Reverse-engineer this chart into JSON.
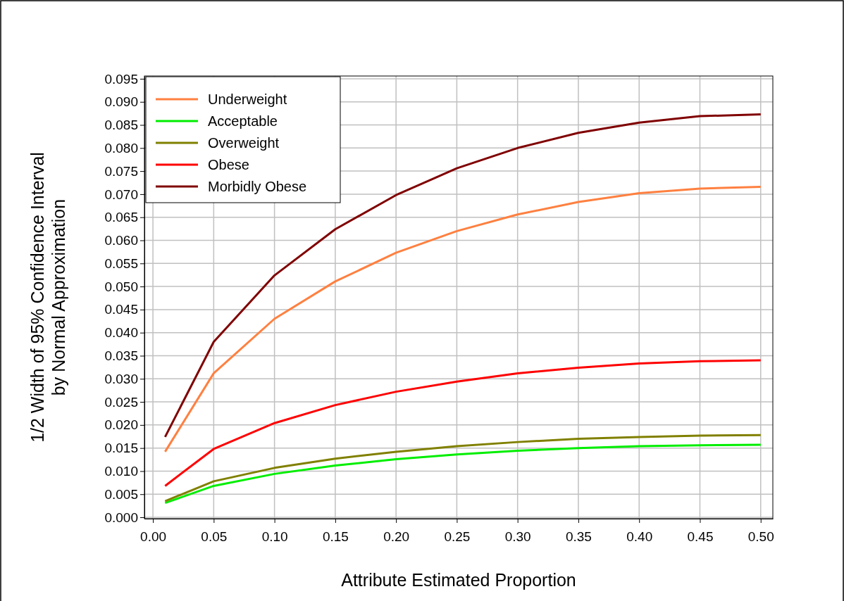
{
  "chart_data": {
    "type": "line",
    "xlabel": "Attribute Estimated Proportion",
    "ylabel": "1/2 Width of 95% Confidence Interval\nby Normal Approximation",
    "x": [
      0.01,
      0.05,
      0.1,
      0.15,
      0.2,
      0.25,
      0.3,
      0.35,
      0.4,
      0.45,
      0.5
    ],
    "series": [
      {
        "name": "Underweight",
        "color": "#ff8040",
        "values": [
          0.0142,
          0.0312,
          0.043,
          0.0511,
          0.0573,
          0.062,
          0.0656,
          0.0683,
          0.0702,
          0.0712,
          0.0716
        ]
      },
      {
        "name": "Acceptable",
        "color": "#00ee00",
        "values": [
          0.0031,
          0.0068,
          0.0094,
          0.0112,
          0.0126,
          0.0136,
          0.0144,
          0.015,
          0.0154,
          0.0156,
          0.0157
        ]
      },
      {
        "name": "Overweight",
        "color": "#808000",
        "values": [
          0.0035,
          0.0078,
          0.0107,
          0.0127,
          0.0142,
          0.0154,
          0.0163,
          0.017,
          0.0174,
          0.0177,
          0.0178
        ]
      },
      {
        "name": "Obese",
        "color": "#ff0000",
        "values": [
          0.0068,
          0.0148,
          0.0204,
          0.0243,
          0.0272,
          0.0294,
          0.0312,
          0.0324,
          0.0333,
          0.0338,
          0.034
        ]
      },
      {
        "name": "Morbidly Obese",
        "color": "#800000",
        "values": [
          0.0174,
          0.038,
          0.0524,
          0.0624,
          0.0698,
          0.0756,
          0.08,
          0.0833,
          0.0855,
          0.0869,
          0.0873
        ]
      }
    ],
    "xlim": [
      -0.007,
      0.51
    ],
    "xticks": [
      {
        "value": 0,
        "label": "0.00"
      },
      {
        "value": 0.05,
        "label": "0.05"
      },
      {
        "value": 0.1,
        "label": "0.10"
      },
      {
        "value": 0.15,
        "label": "0.15"
      },
      {
        "value": 0.2,
        "label": "0.20"
      },
      {
        "value": 0.25,
        "label": "0.25"
      },
      {
        "value": 0.3,
        "label": "0.30"
      },
      {
        "value": 0.35,
        "label": "0.35"
      },
      {
        "value": 0.4,
        "label": "0.40"
      },
      {
        "value": 0.45,
        "label": "0.45"
      },
      {
        "value": 0.5,
        "label": "0.50"
      }
    ],
    "ylim": [
      -0.0003,
      0.0956
    ],
    "yticks": [
      {
        "value": 0,
        "label": "0.000"
      },
      {
        "value": 0.005,
        "label": "0.005"
      },
      {
        "value": 0.01,
        "label": "0.010"
      },
      {
        "value": 0.015,
        "label": "0.015"
      },
      {
        "value": 0.02,
        "label": "0.020"
      },
      {
        "value": 0.025,
        "label": "0.025"
      },
      {
        "value": 0.03,
        "label": "0.030"
      },
      {
        "value": 0.035,
        "label": "0.035"
      },
      {
        "value": 0.04,
        "label": "0.040"
      },
      {
        "value": 0.045,
        "label": "0.045"
      },
      {
        "value": 0.05,
        "label": "0.050"
      },
      {
        "value": 0.055,
        "label": "0.055"
      },
      {
        "value": 0.06,
        "label": "0.060"
      },
      {
        "value": 0.065,
        "label": "0.065"
      },
      {
        "value": 0.07,
        "label": "0.070"
      },
      {
        "value": 0.075,
        "label": "0.075"
      },
      {
        "value": 0.08,
        "label": "0.080"
      },
      {
        "value": 0.085,
        "label": "0.085"
      },
      {
        "value": 0.09,
        "label": "0.090"
      },
      {
        "value": 0.095,
        "label": "0.095"
      }
    ],
    "grid": true,
    "legend": "top left",
    "marker": "none",
    "line_style": "solid"
  }
}
